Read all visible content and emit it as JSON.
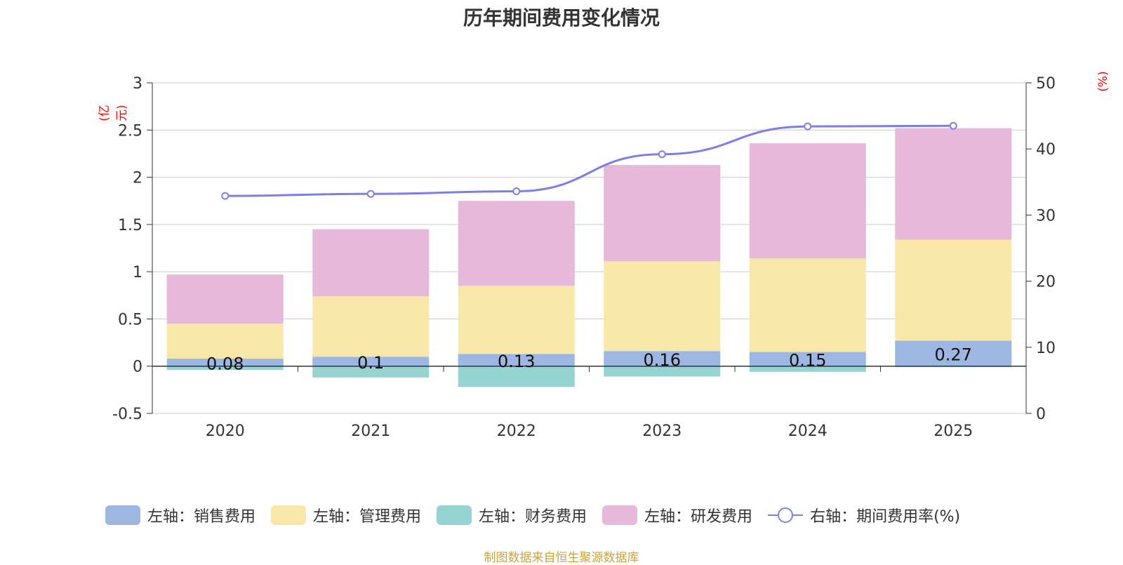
{
  "title": "历年期间费用变化情况",
  "source": "制图数据来自恒生聚源数据库",
  "chart_data": {
    "type": "bar",
    "categories": [
      "2020",
      "2021",
      "2022",
      "2023",
      "2024",
      "2025"
    ],
    "series": [
      {
        "name": "左轴：销售费用",
        "axis": "left",
        "color": "#9db6e2",
        "values": [
          0.08,
          0.1,
          0.13,
          0.16,
          0.15,
          0.27
        ]
      },
      {
        "name": "左轴：管理费用",
        "axis": "left",
        "color": "#f8e7a8",
        "values": [
          0.37,
          0.64,
          0.72,
          0.95,
          0.99,
          1.07
        ]
      },
      {
        "name": "左轴：财务费用",
        "axis": "left",
        "color": "#96d4d4",
        "values": [
          -0.04,
          -0.12,
          -0.22,
          -0.11,
          -0.06,
          -0.01
        ]
      },
      {
        "name": "左轴：研发费用",
        "axis": "left",
        "color": "#e6b8d9",
        "values": [
          0.52,
          0.71,
          0.9,
          1.02,
          1.22,
          1.18
        ]
      },
      {
        "name": "右轴：期间费用率(%)",
        "axis": "right",
        "type": "line",
        "color": "#7b7fe8",
        "values": [
          32.9,
          33.2,
          33.6,
          39.2,
          43.4,
          43.5
        ]
      }
    ],
    "data_labels": [
      "0.08",
      "0.1",
      "0.13",
      "0.16",
      "0.15",
      "0.27"
    ],
    "y_left": {
      "label": "(亿元)",
      "ylim": [
        -0.5,
        3
      ],
      "ticks": [
        "-0.5",
        "0",
        "0.5",
        "1",
        "1.5",
        "2",
        "2.5",
        "3"
      ]
    },
    "y_right": {
      "label": "(%)",
      "ylim": [
        0,
        50
      ],
      "ticks": [
        "0",
        "10",
        "20",
        "30",
        "40",
        "50"
      ]
    },
    "grid": true,
    "legend_position": "bottom"
  }
}
